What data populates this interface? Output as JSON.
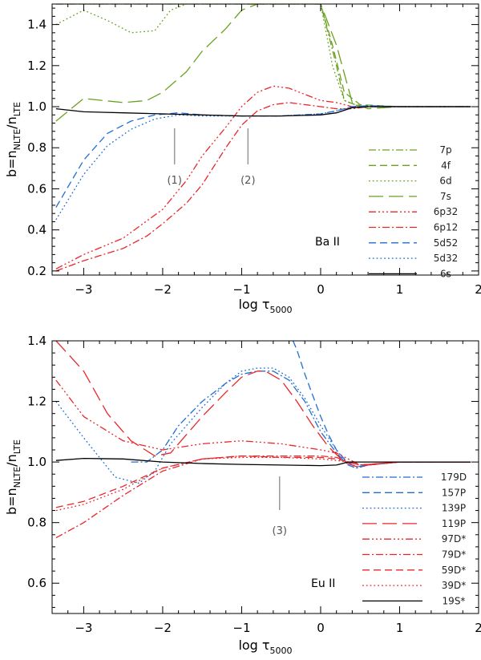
{
  "chart_data": [
    {
      "type": "line",
      "xlabel": "log τ5000",
      "ylabel": "b=nNLTE/nLTE",
      "xlim": [
        -3.4,
        2
      ],
      "ylim": [
        0.18,
        1.5
      ],
      "xticks": [
        -3,
        -2,
        -1,
        0,
        1,
        2
      ],
      "yticks": [
        0.2,
        0.4,
        0.6,
        0.8,
        1.0,
        1.2,
        1.4
      ],
      "ytick_labels": [
        "0.2",
        "0.4",
        "0.6",
        "0.8",
        "1.0",
        "1.2",
        "1.4"
      ],
      "grid": false,
      "legend_position": "bottom-right",
      "panel_label": "Ba II",
      "markers": [
        {
          "x": -1.85,
          "label": "(1)"
        },
        {
          "x": -0.92,
          "label": "(2)"
        }
      ],
      "series": [
        {
          "name": "7p",
          "color": "#6aa121",
          "dash": "dashdot",
          "x": [
            -3.35,
            -3.0,
            -2.5,
            -2.0,
            -1.5,
            -1.0,
            -0.5,
            0.0,
            0.2,
            0.3,
            0.5,
            1.0,
            1.5,
            1.9
          ],
          "y": [
            1.5,
            1.5,
            1.5,
            1.5,
            1.5,
            1.5,
            1.5,
            1.5,
            1.2,
            1.03,
            1.0,
            1.0,
            1.0,
            1.0
          ]
        },
        {
          "name": "4f",
          "color": "#6aa121",
          "dash": "dash",
          "x": [
            -3.35,
            -3.0,
            -2.5,
            -2.0,
            -1.5,
            -1.0,
            -0.5,
            0.0,
            0.15,
            0.3,
            0.5,
            1.0,
            1.5,
            1.9
          ],
          "y": [
            1.5,
            1.5,
            1.5,
            1.5,
            1.5,
            1.5,
            1.5,
            1.5,
            1.3,
            1.07,
            1.01,
            1.0,
            1.0,
            1.0
          ]
        },
        {
          "name": "6d",
          "color": "#6aa121",
          "dash": "dot",
          "x": [
            -3.35,
            -3.0,
            -2.7,
            -2.4,
            -2.1,
            -1.9,
            -1.7,
            -1.5,
            -1.2,
            -1.0,
            -0.5,
            0.0,
            0.15,
            0.3,
            0.5,
            1.0,
            1.5,
            1.9
          ],
          "y": [
            1.4,
            1.47,
            1.42,
            1.36,
            1.37,
            1.47,
            1.5,
            1.5,
            1.5,
            1.5,
            1.5,
            1.5,
            1.2,
            1.03,
            1.0,
            1.0,
            1.0,
            1.0
          ]
        },
        {
          "name": "7s",
          "color": "#6aa121",
          "dash": "longdash",
          "x": [
            -3.35,
            -3.0,
            -2.5,
            -2.2,
            -2.0,
            -1.7,
            -1.5,
            -1.2,
            -1.0,
            -0.8,
            -0.6,
            -0.4,
            -0.2,
            0.0,
            0.2,
            0.4,
            0.6,
            1.0,
            1.5,
            1.9
          ],
          "y": [
            0.93,
            1.04,
            1.02,
            1.03,
            1.07,
            1.17,
            1.27,
            1.38,
            1.47,
            1.5,
            1.5,
            1.5,
            1.5,
            1.5,
            1.3,
            1.02,
            0.99,
            1.0,
            1.0,
            1.0
          ]
        },
        {
          "name": "6p32",
          "color": "#e8272b",
          "dash": "dashdotdotdot",
          "x": [
            -3.35,
            -3.0,
            -2.5,
            -2.0,
            -1.7,
            -1.5,
            -1.2,
            -1.0,
            -0.8,
            -0.6,
            -0.4,
            -0.2,
            0.0,
            0.2,
            0.4,
            0.6,
            1.0,
            1.5,
            1.9
          ],
          "y": [
            0.21,
            0.28,
            0.36,
            0.5,
            0.64,
            0.76,
            0.9,
            1.0,
            1.07,
            1.1,
            1.09,
            1.06,
            1.03,
            1.02,
            1.0,
            1.0,
            1.0,
            1.0,
            1.0
          ]
        },
        {
          "name": "6p12",
          "color": "#e8272b",
          "dash": "dashdot",
          "x": [
            -3.35,
            -3.0,
            -2.5,
            -2.2,
            -2.0,
            -1.7,
            -1.5,
            -1.2,
            -1.0,
            -0.8,
            -0.6,
            -0.4,
            -0.2,
            0.0,
            0.2,
            0.4,
            0.6,
            1.0,
            1.5,
            1.9
          ],
          "y": [
            0.2,
            0.25,
            0.31,
            0.37,
            0.43,
            0.53,
            0.62,
            0.8,
            0.91,
            0.98,
            1.01,
            1.02,
            1.01,
            1.0,
            0.99,
            0.99,
            1.0,
            1.0,
            1.0,
            1.0
          ]
        },
        {
          "name": "5d52",
          "color": "#1f6ed4",
          "dash": "dash",
          "x": [
            -3.35,
            -3.0,
            -2.7,
            -2.4,
            -2.1,
            -1.8,
            -1.5,
            -1.0,
            -0.5,
            0.0,
            0.2,
            0.4,
            0.6,
            1.0,
            1.5,
            1.9
          ],
          "y": [
            0.51,
            0.74,
            0.87,
            0.93,
            0.96,
            0.97,
            0.96,
            0.955,
            0.955,
            0.965,
            0.98,
            1.0,
            1.005,
            1.0,
            1.0,
            1.0
          ]
        },
        {
          "name": "5d32",
          "color": "#1f6ed4",
          "dash": "dot",
          "x": [
            -3.35,
            -3.0,
            -2.7,
            -2.4,
            -2.1,
            -1.8,
            -1.5,
            -1.0,
            -0.5,
            0.0,
            0.2,
            0.4,
            0.6,
            1.0,
            1.5,
            1.9
          ],
          "y": [
            0.45,
            0.67,
            0.81,
            0.89,
            0.94,
            0.96,
            0.955,
            0.955,
            0.955,
            0.965,
            0.98,
            1.0,
            1.005,
            1.0,
            1.0,
            1.0
          ]
        },
        {
          "name": "6s",
          "color": "#000000",
          "dash": "solid",
          "x": [
            -3.35,
            -3.0,
            -2.5,
            -2.0,
            -1.5,
            -1.0,
            -0.5,
            0.0,
            0.2,
            0.4,
            0.6,
            1.0,
            1.5,
            1.9
          ],
          "y": [
            0.99,
            0.975,
            0.97,
            0.965,
            0.96,
            0.955,
            0.955,
            0.96,
            0.97,
            0.995,
            1.0,
            1.0,
            1.0,
            1.0
          ]
        }
      ]
    },
    {
      "type": "line",
      "xlabel": "log τ5000",
      "ylabel": "b=nNLTE/nLTE",
      "xlim": [
        -3.4,
        2
      ],
      "ylim": [
        0.5,
        1.4
      ],
      "xticks": [
        -3,
        -2,
        -1,
        0,
        1,
        2
      ],
      "yticks": [
        0.6,
        0.8,
        1.0,
        1.2,
        1.4
      ],
      "ytick_labels": [
        "0.6",
        "0.8",
        "1.0",
        "1.2",
        "1.4"
      ],
      "grid": false,
      "legend_position": "bottom-right",
      "panel_label": "Eu II",
      "markers": [
        {
          "x": -0.52,
          "label": "(3)"
        }
      ],
      "series": [
        {
          "name": "179D",
          "color": "#1f6ed4",
          "dash": "dashdot",
          "x": [
            -2.4,
            -2.2,
            -2.0,
            -1.8,
            -1.5,
            -1.2,
            -1.0,
            -0.8,
            -0.6,
            -0.4,
            -0.2,
            0.0,
            0.2,
            0.35,
            0.45,
            0.6,
            1.0,
            1.5,
            1.9
          ],
          "y": [
            1.0,
            1.0,
            1.04,
            1.12,
            1.2,
            1.26,
            1.29,
            1.3,
            1.3,
            1.27,
            1.2,
            1.1,
            1.03,
            0.99,
            0.98,
            0.99,
            1.0,
            1.0,
            1.0
          ]
        },
        {
          "name": "157P",
          "color": "#1f6ed4",
          "dash": "dash",
          "x": [
            -0.35,
            -0.3,
            -0.2,
            -0.1,
            0.0,
            0.1,
            0.2,
            0.3,
            0.4,
            0.5,
            0.6,
            1.0,
            1.5,
            1.9
          ],
          "y": [
            1.4,
            1.37,
            1.29,
            1.22,
            1.15,
            1.09,
            1.04,
            1.01,
            0.99,
            0.985,
            0.99,
            1.0,
            1.0,
            1.0
          ]
        },
        {
          "name": "139P",
          "color": "#1f6ed4",
          "dash": "dot",
          "x": [
            -3.35,
            -3.0,
            -2.6,
            -2.3,
            -2.1,
            -1.9,
            -1.5,
            -1.2,
            -1.0,
            -0.8,
            -0.6,
            -0.4,
            -0.2,
            0.0,
            0.2,
            0.35,
            0.45,
            0.6,
            1.0,
            1.5,
            1.9
          ],
          "y": [
            1.2,
            1.08,
            0.95,
            0.93,
            0.97,
            1.06,
            1.18,
            1.26,
            1.3,
            1.31,
            1.31,
            1.28,
            1.21,
            1.12,
            1.04,
            0.99,
            0.98,
            0.99,
            1.0,
            1.0,
            1.0
          ]
        },
        {
          "name": "119P",
          "color": "#e8272b",
          "dash": "longdash",
          "x": [
            -3.35,
            -3.0,
            -2.7,
            -2.4,
            -2.1,
            -1.9,
            -1.7,
            -1.5,
            -1.2,
            -1.0,
            -0.8,
            -0.7,
            -0.5,
            -0.3,
            -0.1,
            0.1,
            0.3,
            0.45,
            0.6,
            1.0,
            1.5,
            1.9
          ],
          "y": [
            1.4,
            1.3,
            1.16,
            1.07,
            1.02,
            1.03,
            1.09,
            1.15,
            1.23,
            1.28,
            1.3,
            1.3,
            1.27,
            1.2,
            1.12,
            1.05,
            1.0,
            0.985,
            0.99,
            1.0,
            1.0,
            1.0
          ]
        },
        {
          "name": "97D*",
          "color": "#e8272b",
          "dash": "dashdotdotdot",
          "x": [
            -3.35,
            -3.0,
            -2.5,
            -2.0,
            -1.5,
            -1.0,
            -0.5,
            0.0,
            0.2,
            0.35,
            0.5,
            1.0,
            1.5,
            1.9
          ],
          "y": [
            1.27,
            1.15,
            1.07,
            1.04,
            1.06,
            1.07,
            1.06,
            1.04,
            1.03,
            1.01,
            0.99,
            1.0,
            1.0,
            1.0
          ]
        },
        {
          "name": "79D*",
          "color": "#e8272b",
          "dash": "dashdot",
          "x": [
            -3.35,
            -3.0,
            -2.5,
            -2.0,
            -1.5,
            -1.0,
            -0.5,
            0.0,
            0.2,
            0.35,
            0.5,
            1.0,
            1.5,
            1.9
          ],
          "y": [
            0.75,
            0.8,
            0.89,
            0.97,
            1.01,
            1.02,
            1.02,
            1.02,
            1.015,
            1.0,
            0.99,
            1.0,
            1.0,
            1.0
          ]
        },
        {
          "name": "59D*",
          "color": "#e8272b",
          "dash": "dash",
          "x": [
            -3.35,
            -3.0,
            -2.5,
            -2.0,
            -1.5,
            -1.0,
            -0.5,
            0.0,
            0.2,
            0.35,
            0.5,
            1.0,
            1.5,
            1.9
          ],
          "y": [
            0.85,
            0.87,
            0.92,
            0.98,
            1.01,
            1.02,
            1.015,
            1.015,
            1.01,
            1.0,
            0.99,
            1.0,
            1.0,
            1.0
          ]
        },
        {
          "name": "39D*",
          "color": "#e8272b",
          "dash": "dot",
          "x": [
            -3.35,
            -3.0,
            -2.5,
            -2.0,
            -1.5,
            -1.0,
            -0.5,
            0.0,
            0.2,
            0.35,
            0.5,
            1.0,
            1.5,
            1.9
          ],
          "y": [
            0.84,
            0.86,
            0.91,
            0.98,
            1.01,
            1.015,
            1.015,
            1.01,
            1.005,
            1.0,
            0.99,
            1.0,
            1.0,
            1.0
          ]
        },
        {
          "name": "19S*",
          "color": "#000000",
          "dash": "solid",
          "x": [
            -3.35,
            -3.0,
            -2.5,
            -2.0,
            -1.5,
            -1.0,
            -0.5,
            0.0,
            0.2,
            0.35,
            0.5,
            1.0,
            1.5,
            1.9
          ],
          "y": [
            1.005,
            1.012,
            1.01,
            1.0,
            0.995,
            0.992,
            0.99,
            0.988,
            0.99,
            1.0,
            1.0,
            1.0,
            1.0,
            1.0
          ]
        }
      ]
    }
  ]
}
